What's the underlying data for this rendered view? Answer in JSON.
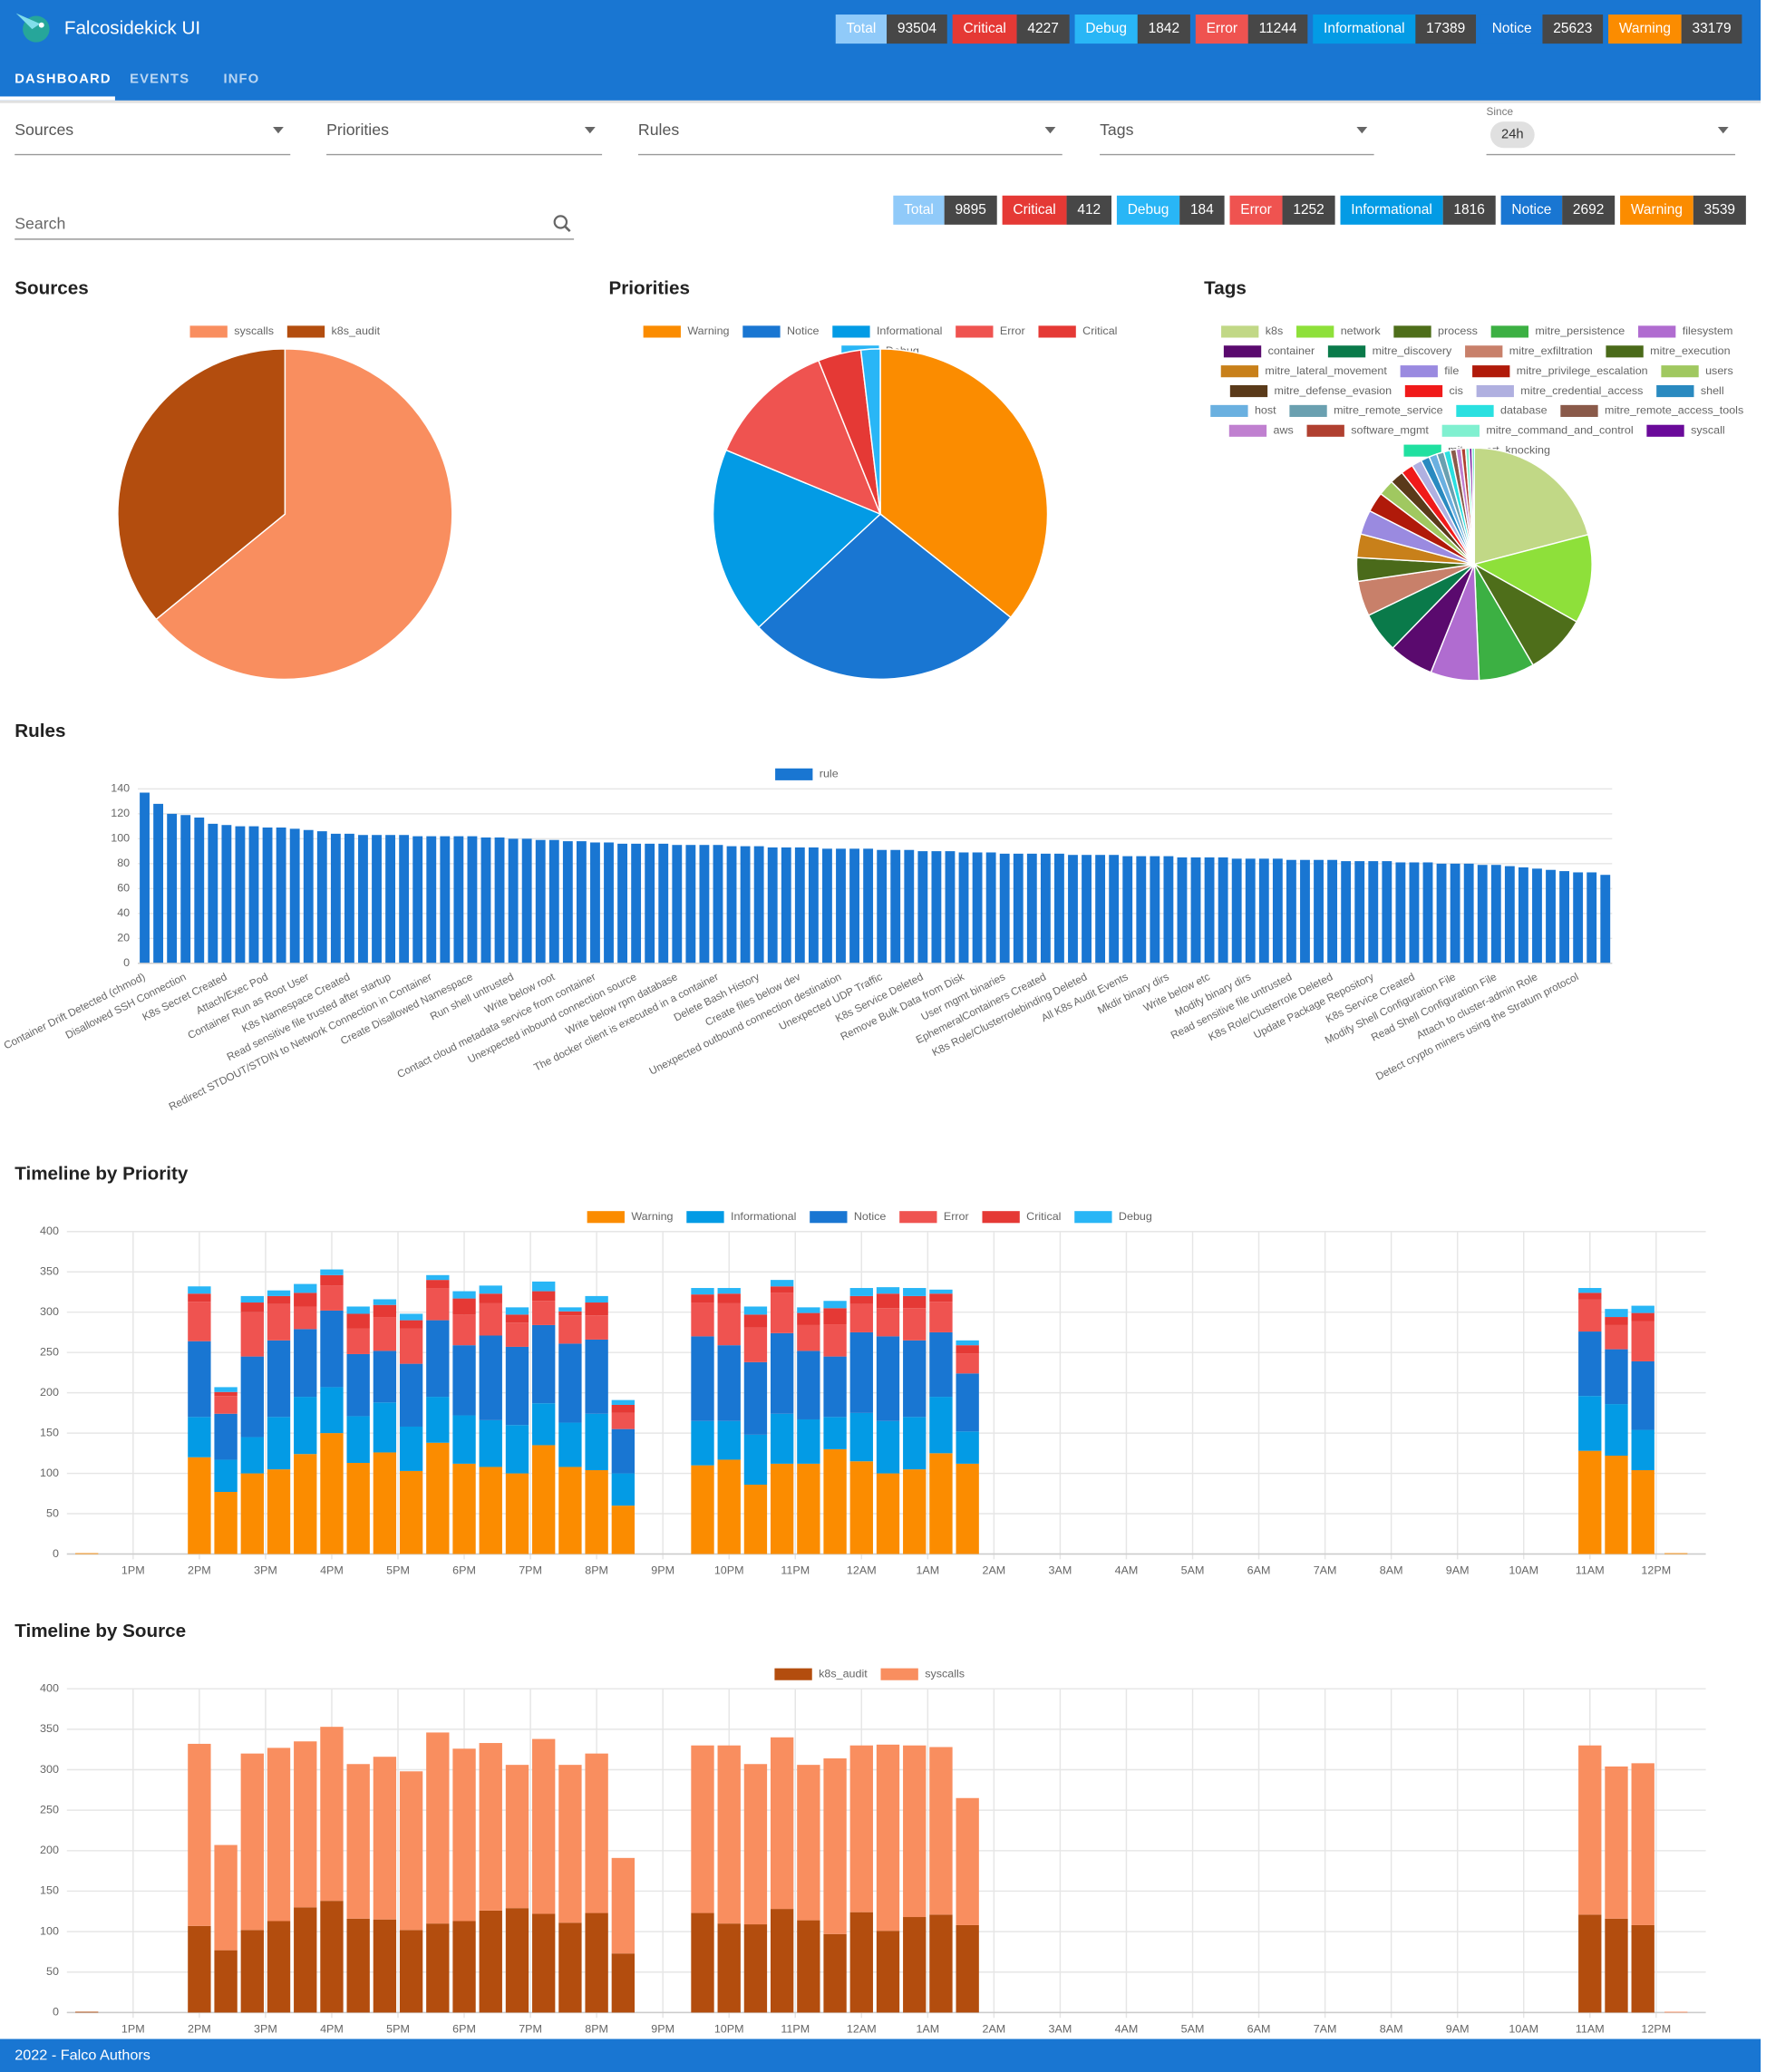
{
  "header": {
    "title": "Falcosidekick UI",
    "counters": [
      {
        "label": "Total",
        "value": 93504,
        "color": "#90caf9"
      },
      {
        "label": "Critical",
        "value": 4227,
        "color": "#e53935"
      },
      {
        "label": "Debug",
        "value": 1842,
        "color": "#29b6f6"
      },
      {
        "label": "Error",
        "value": 11244,
        "color": "#ef5350"
      },
      {
        "label": "Informational",
        "value": 17389,
        "color": "#039be5"
      },
      {
        "label": "Notice",
        "value": 25623,
        "color": "#1976d2"
      },
      {
        "label": "Warning",
        "value": 33179,
        "color": "#fb8c00"
      }
    ]
  },
  "tabs": [
    "DASHBOARD",
    "EVENTS",
    "INFO"
  ],
  "filters": {
    "sources": "Sources",
    "priorities": "Priorities",
    "rules": "Rules",
    "tags": "Tags",
    "since_label": "Since",
    "since_value": "24h",
    "search": "Search"
  },
  "counters": [
    {
      "label": "Total",
      "value": 9895,
      "color": "#90caf9"
    },
    {
      "label": "Critical",
      "value": 412,
      "color": "#e53935"
    },
    {
      "label": "Debug",
      "value": 184,
      "color": "#29b6f6"
    },
    {
      "label": "Error",
      "value": 1252,
      "color": "#ef5350"
    },
    {
      "label": "Informational",
      "value": 1816,
      "color": "#039be5"
    },
    {
      "label": "Notice",
      "value": 2692,
      "color": "#1976d2"
    },
    {
      "label": "Warning",
      "value": 3539,
      "color": "#fb8c00"
    }
  ],
  "chart_data": [
    {
      "type": "pie",
      "title": "Sources",
      "categories": [
        "syscalls",
        "k8s_audit"
      ],
      "values": [
        64,
        36
      ],
      "colors": [
        "#f98e5f",
        "#b34d0e"
      ]
    },
    {
      "type": "pie",
      "title": "Priorities",
      "categories": [
        "Warning",
        "Notice",
        "Informational",
        "Error",
        "Critical",
        "Debug"
      ],
      "values": [
        3539,
        2692,
        1816,
        1252,
        412,
        184
      ],
      "colors": [
        "#fb8c00",
        "#1976d2",
        "#039be5",
        "#ef5350",
        "#e53935",
        "#29b6f6"
      ]
    },
    {
      "type": "pie",
      "title": "Tags",
      "categories": [
        "k8s",
        "network",
        "process",
        "mitre_persistence",
        "filesystem",
        "container",
        "mitre_discovery",
        "mitre_exfiltration",
        "mitre_execution",
        "mitre_lateral_movement",
        "file",
        "mitre_privilege_escalation",
        "users",
        "mitre_defense_evasion",
        "cis",
        "mitre_credential_access",
        "shell",
        "host",
        "mitre_remote_service",
        "database",
        "mitre_remote_access_tools",
        "aws",
        "software_mgmt",
        "mitre_command_and_control",
        "syscall",
        "mitre_port_knocking"
      ],
      "values": [
        21,
        12.4,
        8.5,
        7.7,
        6.7,
        6.2,
        5.6,
        4.9,
        3.3,
        3.3,
        3.4,
        2.8,
        2.2,
        1.9,
        1.7,
        1.4,
        1.2,
        1.1,
        1.0,
        0.9,
        0.8,
        0.7,
        0.6,
        0.5,
        0.4,
        0.3
      ],
      "colors": [
        "#c1d886",
        "#8ee03a",
        "#4e6e1a",
        "#3cb043",
        "#b06cd0",
        "#5a0a6e",
        "#0a7a4a",
        "#c8806a",
        "#4a6a1a",
        "#c8801a",
        "#9a8ae0",
        "#b01a0a",
        "#a0c860",
        "#5a3a1a",
        "#f01a1a",
        "#b0b0e0",
        "#2a8ac0",
        "#6ab0e0",
        "#6aa0b0",
        "#2ae0e0",
        "#8a5a4a",
        "#c080d0",
        "#b04030",
        "#80f0d0",
        "#6a0a9a",
        "#20e0a0"
      ]
    },
    {
      "type": "bar",
      "title": "Rules",
      "categories": [
        "Container Drift Detected (chmod)",
        null,
        null,
        "Disallowed SSH Connection",
        null,
        null,
        "K8s Secret Created",
        null,
        null,
        "Attach/Exec Pod",
        null,
        null,
        "Container Run as Root User",
        null,
        null,
        "K8s Namespace Created",
        null,
        null,
        "Read sensitive file trusted after startup",
        null,
        null,
        "Redirect STDOUT/STDIN to Network Connection in Container",
        null,
        null,
        "Create Disallowed Namespace",
        null,
        null,
        "Run shell untrusted",
        null,
        null,
        "Write below root",
        null,
        null,
        "Contact cloud metadata service from container",
        null,
        null,
        "Unexpected inbound connection source",
        null,
        null,
        "Write below rpm database",
        null,
        null,
        "The docker client is executed in a container",
        null,
        null,
        "Delete Bash History",
        null,
        null,
        "Create files below dev",
        null,
        null,
        "Unexpected outbound connection destination",
        null,
        null,
        "Unexpected UDP Traffic",
        null,
        null,
        "K8s Service Deleted",
        null,
        null,
        "Remove Bulk Data from Disk",
        null,
        null,
        "User mgmt binaries",
        null,
        null,
        "EphemeralContainers Created",
        null,
        null,
        "K8s Role/Clusterrolebinding Deleted",
        null,
        null,
        "All K8s Audit Events",
        null,
        null,
        "Mkdir binary dirs",
        null,
        null,
        "Write below etc",
        null,
        null,
        "Modify binary dirs",
        null,
        null,
        "Read sensitive file untrusted",
        null,
        null,
        "K8s Role/Clusterrole Deleted",
        null,
        null,
        "Update Package Repository",
        null,
        null,
        "K8s Service Created",
        null,
        null,
        "Modify Shell Configuration File",
        null,
        null,
        "Read Shell Configuration File",
        null,
        null,
        "Attach to cluster-admin Role",
        null,
        null,
        "Detect crypto miners using the Stratum protocol",
        null,
        null
      ],
      "series": [
        {
          "name": "rule",
          "color": "#1976d2",
          "values": [
            137,
            128,
            120,
            119,
            117,
            112,
            111,
            110,
            110,
            109,
            109,
            108,
            107,
            106,
            104,
            104,
            103,
            103,
            103,
            103,
            102,
            102,
            102,
            102,
            102,
            101,
            101,
            100,
            100,
            99,
            99,
            98,
            98,
            97,
            97,
            96,
            96,
            96,
            96,
            95,
            95,
            95,
            95,
            94,
            94,
            94,
            93,
            93,
            93,
            93,
            92,
            92,
            92,
            92,
            91,
            91,
            91,
            90,
            90,
            90,
            89,
            89,
            89,
            88,
            88,
            88,
            88,
            88,
            87,
            87,
            87,
            87,
            86,
            86,
            86,
            86,
            85,
            85,
            85,
            85,
            84,
            84,
            84,
            84,
            83,
            83,
            83,
            83,
            82,
            82,
            82,
            82,
            81,
            81,
            81,
            80,
            80,
            80,
            79,
            79,
            78,
            77,
            76,
            75,
            74,
            73,
            73,
            71
          ]
        }
      ],
      "ylim": [
        0,
        140
      ],
      "yticks": [
        0,
        20,
        40,
        60,
        80,
        100,
        120,
        140
      ],
      "grid": true
    },
    {
      "type": "stacked_bar",
      "title": "Timeline by Priority",
      "x": [
        12.3,
        14,
        14.4,
        14.8,
        15.2,
        15.6,
        16,
        16.4,
        16.8,
        17.2,
        17.6,
        18,
        18.4,
        18.8,
        19.2,
        19.6,
        20,
        20.4,
        21.6,
        22,
        22.4,
        22.8,
        23.2,
        23.6,
        24,
        24.4,
        24.8,
        25.2,
        25.6,
        35,
        35.4,
        35.8,
        36.3
      ],
      "xlim": [
        12,
        36.75
      ],
      "xticks": [
        {
          "value": 13,
          "label": "1PM"
        },
        {
          "value": 14,
          "label": "2PM"
        },
        {
          "value": 15,
          "label": "3PM"
        },
        {
          "value": 16,
          "label": "4PM"
        },
        {
          "value": 17,
          "label": "5PM"
        },
        {
          "value": 18,
          "label": "6PM"
        },
        {
          "value": 19,
          "label": "7PM"
        },
        {
          "value": 20,
          "label": "8PM"
        },
        {
          "value": 21,
          "label": "9PM"
        },
        {
          "value": 22,
          "label": "10PM"
        },
        {
          "value": 23,
          "label": "11PM"
        },
        {
          "value": 24,
          "label": "12AM"
        },
        {
          "value": 25,
          "label": "1AM"
        },
        {
          "value": 26,
          "label": "2AM"
        },
        {
          "value": 27,
          "label": "3AM"
        },
        {
          "value": 28,
          "label": "4AM"
        },
        {
          "value": 29,
          "label": "5AM"
        },
        {
          "value": 30,
          "label": "6AM"
        },
        {
          "value": 31,
          "label": "7AM"
        },
        {
          "value": 32,
          "label": "8AM"
        },
        {
          "value": 33,
          "label": "9AM"
        },
        {
          "value": 34,
          "label": "10AM"
        },
        {
          "value": 35,
          "label": "11AM"
        },
        {
          "value": 36,
          "label": "12PM"
        }
      ],
      "series": [
        {
          "name": "Warning",
          "color": "#fb8c00",
          "values": [
            1,
            120,
            77,
            100,
            105,
            124,
            150,
            113,
            126,
            103,
            138,
            112,
            108,
            100,
            135,
            108,
            104,
            60,
            110,
            117,
            86,
            112,
            112,
            130,
            115,
            100,
            105,
            125,
            112,
            128,
            122,
            104,
            1
          ]
        },
        {
          "name": "Informational",
          "color": "#039be5",
          "values": [
            0,
            50,
            40,
            45,
            65,
            71,
            57,
            58,
            62,
            55,
            57,
            60,
            58,
            60,
            52,
            55,
            70,
            40,
            55,
            48,
            62,
            62,
            55,
            40,
            60,
            65,
            65,
            70,
            40,
            68,
            64,
            50,
            0
          ]
        },
        {
          "name": "Notice",
          "color": "#1976d2",
          "values": [
            0,
            94,
            57,
            100,
            95,
            84,
            95,
            77,
            64,
            78,
            95,
            87,
            105,
            97,
            97,
            98,
            92,
            55,
            105,
            94,
            90,
            100,
            85,
            75,
            100,
            105,
            95,
            80,
            72,
            80,
            68,
            85,
            0
          ]
        },
        {
          "name": "Error",
          "color": "#ef5350",
          "values": [
            0,
            49,
            22,
            55,
            45,
            28,
            31,
            32,
            42,
            44,
            40,
            38,
            40,
            30,
            30,
            35,
            30,
            20,
            42,
            52,
            43,
            50,
            32,
            40,
            35,
            35,
            40,
            38,
            25,
            40,
            30,
            50,
            0
          ]
        },
        {
          "name": "Critical",
          "color": "#e53935",
          "values": [
            0,
            10,
            5,
            12,
            10,
            17,
            13,
            18,
            15,
            10,
            10,
            20,
            12,
            10,
            12,
            5,
            16,
            10,
            10,
            12,
            16,
            8,
            15,
            20,
            10,
            18,
            15,
            10,
            10,
            8,
            10,
            10,
            0
          ]
        },
        {
          "name": "Debug",
          "color": "#29b6f6",
          "values": [
            0,
            9,
            6,
            8,
            7,
            11,
            7,
            9,
            7,
            8,
            6,
            9,
            10,
            9,
            12,
            5,
            8,
            6,
            8,
            7,
            10,
            8,
            7,
            9,
            10,
            8,
            10,
            5,
            6,
            6,
            10,
            9,
            0
          ]
        }
      ],
      "ylim": [
        0,
        400
      ],
      "yticks": [
        0,
        50,
        100,
        150,
        200,
        250,
        300,
        350,
        400
      ],
      "grid": true
    },
    {
      "type": "stacked_bar",
      "title": "Timeline by Source",
      "x": [
        12.3,
        14,
        14.4,
        14.8,
        15.2,
        15.6,
        16,
        16.4,
        16.8,
        17.2,
        17.6,
        18,
        18.4,
        18.8,
        19.2,
        19.6,
        20,
        20.4,
        21.6,
        22,
        22.4,
        22.8,
        23.2,
        23.6,
        24,
        24.4,
        24.8,
        25.2,
        25.6,
        35,
        35.4,
        35.8,
        36.3
      ],
      "xlim": [
        12,
        36.75
      ],
      "xticks": [
        {
          "value": 13,
          "label": "1PM"
        },
        {
          "value": 14,
          "label": "2PM"
        },
        {
          "value": 15,
          "label": "3PM"
        },
        {
          "value": 16,
          "label": "4PM"
        },
        {
          "value": 17,
          "label": "5PM"
        },
        {
          "value": 18,
          "label": "6PM"
        },
        {
          "value": 19,
          "label": "7PM"
        },
        {
          "value": 20,
          "label": "8PM"
        },
        {
          "value": 21,
          "label": "9PM"
        },
        {
          "value": 22,
          "label": "10PM"
        },
        {
          "value": 23,
          "label": "11PM"
        },
        {
          "value": 24,
          "label": "12AM"
        },
        {
          "value": 25,
          "label": "1AM"
        },
        {
          "value": 26,
          "label": "2AM"
        },
        {
          "value": 27,
          "label": "3AM"
        },
        {
          "value": 28,
          "label": "4AM"
        },
        {
          "value": 29,
          "label": "5AM"
        },
        {
          "value": 30,
          "label": "6AM"
        },
        {
          "value": 31,
          "label": "7AM"
        },
        {
          "value": 32,
          "label": "8AM"
        },
        {
          "value": 33,
          "label": "9AM"
        },
        {
          "value": 34,
          "label": "10AM"
        },
        {
          "value": 35,
          "label": "11AM"
        },
        {
          "value": 36,
          "label": "12PM"
        }
      ],
      "series": [
        {
          "name": "k8s_audit",
          "color": "#b34d0e",
          "values": [
            1,
            107,
            77,
            102,
            113,
            130,
            138,
            116,
            115,
            102,
            110,
            113,
            126,
            129,
            122,
            111,
            123,
            73,
            123,
            110,
            109,
            128,
            114,
            97,
            124,
            101,
            118,
            121,
            108,
            121,
            116,
            108,
            0
          ]
        },
        {
          "name": "syscalls",
          "color": "#f98e5f",
          "values": [
            0,
            225,
            130,
            218,
            214,
            205,
            215,
            191,
            201,
            196,
            236,
            213,
            207,
            177,
            216,
            195,
            197,
            118,
            207,
            220,
            198,
            212,
            192,
            217,
            206,
            230,
            212,
            207,
            157,
            209,
            188,
            200,
            1
          ]
        }
      ],
      "ylim": [
        0,
        400
      ],
      "yticks": [
        0,
        50,
        100,
        150,
        200,
        250,
        300,
        350,
        400
      ],
      "grid": true
    }
  ],
  "footer": "2022 - Falco Authors"
}
